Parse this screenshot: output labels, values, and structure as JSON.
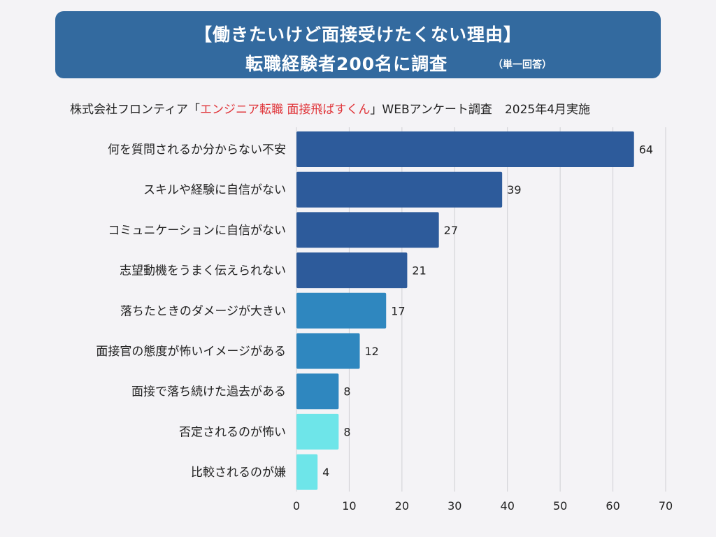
{
  "header": {
    "title_line1": "【働きたいけど面接受けたくない理由】",
    "title_line2": "転職経験者200名に調査",
    "title_note": "（単一回答）"
  },
  "source": {
    "prefix": "株式会社フロンティア「",
    "highlight": "エンジニア転職 面接飛ばすくん",
    "suffix": "」WEBアンケート調査",
    "date": "2025年4月実施"
  },
  "colors": {
    "banner": "#336a9f",
    "highlight": "#e0353a",
    "bar_dark": "#2d5b9b",
    "bar_mid": "#2f87bf",
    "bar_light": "#6ee5e9"
  },
  "chart_data": {
    "type": "bar",
    "orientation": "horizontal",
    "categories": [
      "何を質問されるか分からない不安",
      "スキルや経験に自信がない",
      "コミュニケーションに自信がない",
      "志望動機をうまく伝えられない",
      "落ちたときのダメージが大きい",
      "面接官の態度が怖いイメージがある",
      "面接で落ち続けた過去がある",
      "否定されるのが怖い",
      "比較されるのが嫌"
    ],
    "values": [
      64,
      39,
      27,
      21,
      17,
      12,
      8,
      8,
      4
    ],
    "bar_colors": [
      "#2d5b9b",
      "#2d5b9b",
      "#2d5b9b",
      "#2d5b9b",
      "#2f87bf",
      "#2f87bf",
      "#2f87bf",
      "#6ee5e9",
      "#6ee5e9"
    ],
    "xlim": [
      0,
      70
    ],
    "xticks": [
      0,
      10,
      20,
      30,
      40,
      50,
      60,
      70
    ],
    "grid": true,
    "xlabel": "",
    "ylabel": ""
  }
}
